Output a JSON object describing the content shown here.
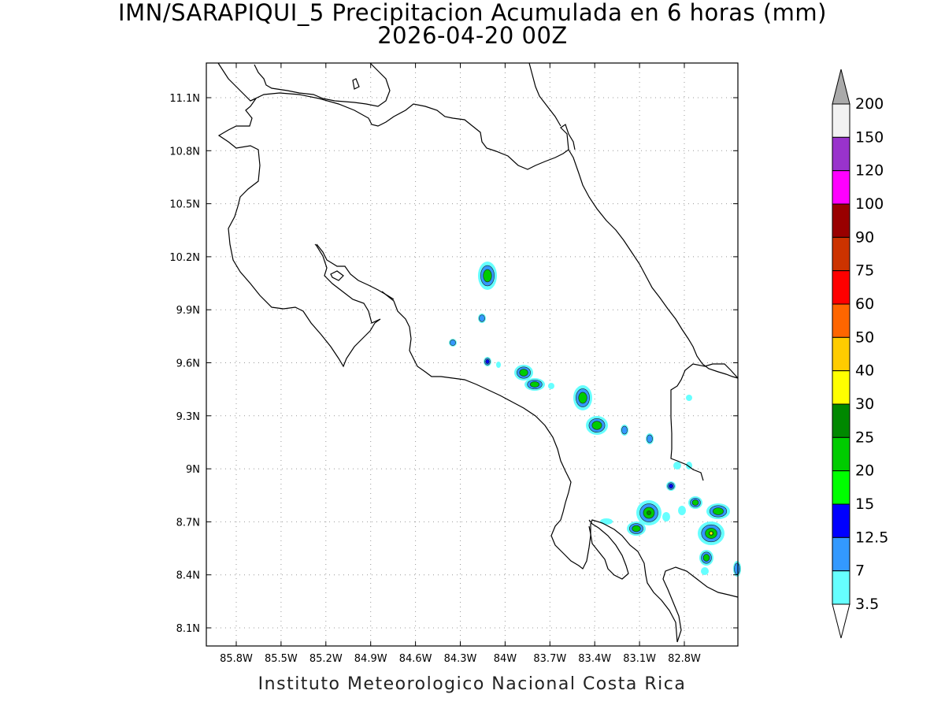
{
  "title": {
    "line1": "IMN/SARAPIQUI_5 Precipitacion Acumulada en 6 horas (mm)",
    "line2": "2026-04-20 00Z"
  },
  "footer": "Instituto Meteorologico Nacional Costa Rica",
  "map": {
    "lon_range": [
      -86.0,
      -82.5
    ],
    "lat_range": [
      8.0,
      11.3
    ],
    "lon_ticks": [
      "85.8W",
      "85.5W",
      "85.2W",
      "84.9W",
      "84.6W",
      "84.3W",
      "84W",
      "83.7W",
      "83.4W",
      "83.1W",
      "82.8W"
    ],
    "lat_ticks": [
      "11.1N",
      "10.8N",
      "10.5N",
      "10.2N",
      "9.9N",
      "9.6N",
      "9.3N",
      "9N",
      "8.7N",
      "8.4N",
      "8.1N"
    ],
    "grid": "dotted"
  },
  "colorbar": {
    "labels": [
      "200",
      "150",
      "120",
      "100",
      "90",
      "75",
      "60",
      "50",
      "40",
      "30",
      "25",
      "20",
      "15",
      "12.5",
      "7",
      "3.5"
    ],
    "colors": [
      "#f2f2f2",
      "#9933cc",
      "#ff00ff",
      "#990000",
      "#cc3300",
      "#ff0000",
      "#ff6600",
      "#ffcc00",
      "#ffff00",
      "#008800",
      "#00cc00",
      "#00ff00",
      "#0000ff",
      "#3399ff",
      "#66ffff"
    ],
    "over_color": "#aaaaaa",
    "under_color": "#ffffff"
  }
}
